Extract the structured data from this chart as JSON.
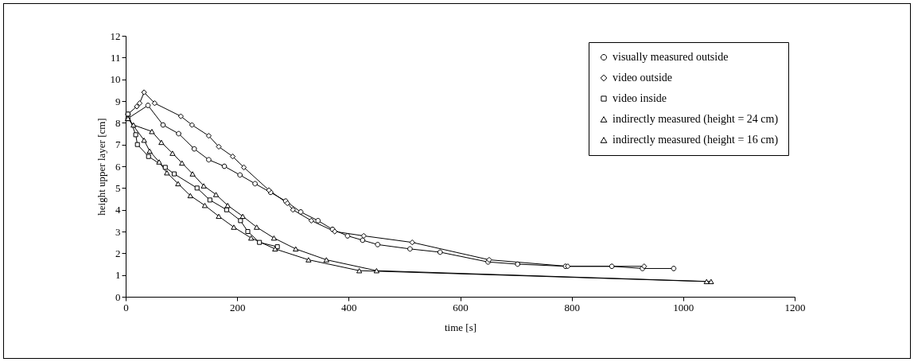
{
  "chart_data": {
    "type": "line",
    "xlabel": "time [s]",
    "ylabel": "height upper layer [cm]",
    "xlim": [
      0,
      1200
    ],
    "xticks": [
      0,
      200,
      400,
      600,
      800,
      1000,
      1200
    ],
    "ylim": [
      0,
      12
    ],
    "yticks": [
      0,
      1,
      2,
      3,
      4,
      5,
      6,
      7,
      8,
      9,
      10,
      11,
      12
    ],
    "legend": "top right",
    "line_style": "solid",
    "series": [
      {
        "name": "visually measured outside",
        "color": "#000000",
        "marker": "circle",
        "x": [
          4,
          40,
          67,
          95,
          123,
          149,
          177,
          205,
          232,
          260,
          287,
          314,
          345,
          371,
          398,
          425,
          452,
          510,
          564,
          650,
          703,
          789,
          872,
          927,
          983
        ],
        "values": [
          8.2,
          8.8,
          7.9,
          7.5,
          6.8,
          6.3,
          6.0,
          5.6,
          5.2,
          4.8,
          4.4,
          3.9,
          3.5,
          3.1,
          2.8,
          2.6,
          2.4,
          2.2,
          2.05,
          1.6,
          1.5,
          1.4,
          1.4,
          1.3,
          1.3
        ]
      },
      {
        "name": "video outside",
        "color": "#000000",
        "marker": "diamond",
        "x": [
          4,
          20,
          25,
          33,
          52,
          99,
          119,
          149,
          167,
          192,
          212,
          257,
          290,
          300,
          333,
          375,
          427,
          514,
          652,
          793,
          930
        ],
        "values": [
          8.4,
          8.75,
          8.9,
          9.4,
          8.9,
          8.3,
          7.9,
          7.4,
          6.9,
          6.45,
          5.95,
          4.9,
          4.3,
          4.0,
          3.5,
          3.0,
          2.8,
          2.5,
          1.7,
          1.4,
          1.4
        ]
      },
      {
        "name": "video inside",
        "color": "#000000",
        "marker": "square",
        "x": [
          4,
          18,
          21,
          41,
          71,
          87,
          128,
          151,
          181,
          206,
          219,
          240,
          272
        ],
        "values": [
          8.4,
          7.45,
          7.0,
          6.45,
          5.95,
          5.65,
          5.0,
          4.45,
          4.0,
          3.5,
          3.0,
          2.5,
          2.3
        ]
      },
      {
        "name": "indirectly measured (height = 24 cm)",
        "color": "#000000",
        "marker": "triangle",
        "x": [
          4,
          14,
          47,
          64,
          84,
          101,
          120,
          140,
          162,
          183,
          210,
          235,
          266,
          305,
          360,
          450,
          1050
        ],
        "values": [
          8.2,
          7.9,
          7.6,
          7.1,
          6.6,
          6.15,
          5.65,
          5.1,
          4.7,
          4.2,
          3.7,
          3.2,
          2.7,
          2.2,
          1.7,
          1.2,
          0.7
        ]
      },
      {
        "name": "indirectly measured (height = 16 cm)",
        "color": "#000000",
        "marker": "triangle",
        "x": [
          4,
          33,
          43,
          60,
          74,
          94,
          116,
          142,
          167,
          194,
          225,
          268,
          328,
          419,
          1042
        ],
        "values": [
          8.2,
          7.2,
          6.7,
          6.2,
          5.7,
          5.2,
          4.65,
          4.2,
          3.7,
          3.2,
          2.7,
          2.2,
          1.7,
          1.2,
          0.7
        ]
      }
    ]
  }
}
